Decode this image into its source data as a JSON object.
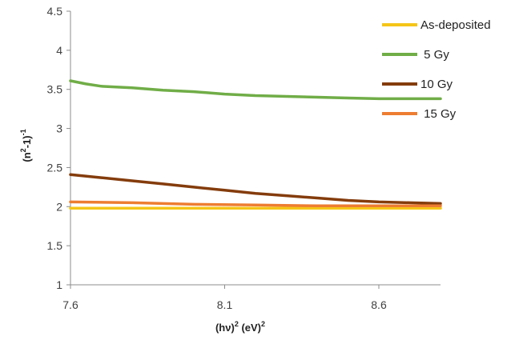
{
  "chart_data": {
    "type": "line",
    "xlabel": "(hv)2 (eV)2",
    "ylabel": "(n2-1)-1",
    "xlabel_parts": {
      "base": "(hν)",
      "sup1": "2",
      "mid": " (eV)",
      "sup2": "2"
    },
    "ylabel_parts": {
      "base": "(n",
      "sup1": "2",
      "mid": "-1)",
      "sup2": "-1"
    },
    "xlim": [
      7.6,
      8.8
    ],
    "ylim": [
      1,
      4.5
    ],
    "xticks": [
      7.6,
      8.1,
      8.6
    ],
    "yticks": [
      1,
      1.5,
      2,
      2.5,
      3,
      3.5,
      4,
      4.5
    ],
    "grid": false,
    "legend_position": "top-right",
    "series": [
      {
        "name": "As-deposited",
        "color": "#F5C518",
        "x": [
          7.6,
          7.8,
          8.0,
          8.2,
          8.4,
          8.6,
          8.8
        ],
        "y": [
          1.98,
          1.98,
          1.98,
          1.98,
          1.98,
          1.98,
          1.98
        ]
      },
      {
        "name": " 5 Gy",
        "color": "#70AD47",
        "x": [
          7.6,
          7.65,
          7.7,
          7.8,
          7.9,
          8.0,
          8.1,
          8.2,
          8.3,
          8.4,
          8.5,
          8.6,
          8.7,
          8.8
        ],
        "y": [
          3.61,
          3.57,
          3.54,
          3.52,
          3.49,
          3.47,
          3.44,
          3.42,
          3.41,
          3.4,
          3.39,
          3.38,
          3.38,
          3.38
        ]
      },
      {
        "name": "10 Gy",
        "color": "#843C0C",
        "x": [
          7.6,
          7.7,
          7.8,
          7.9,
          8.0,
          8.1,
          8.2,
          8.3,
          8.4,
          8.5,
          8.6,
          8.7,
          8.8
        ],
        "y": [
          2.41,
          2.37,
          2.33,
          2.29,
          2.25,
          2.21,
          2.17,
          2.14,
          2.11,
          2.08,
          2.06,
          2.05,
          2.04
        ]
      },
      {
        "name": " 15 Gy",
        "color": "#ED7D31",
        "x": [
          7.6,
          7.8,
          8.0,
          8.2,
          8.4,
          8.6,
          8.8
        ],
        "y": [
          2.06,
          2.05,
          2.03,
          2.02,
          2.01,
          2.01,
          2.01
        ]
      }
    ]
  }
}
